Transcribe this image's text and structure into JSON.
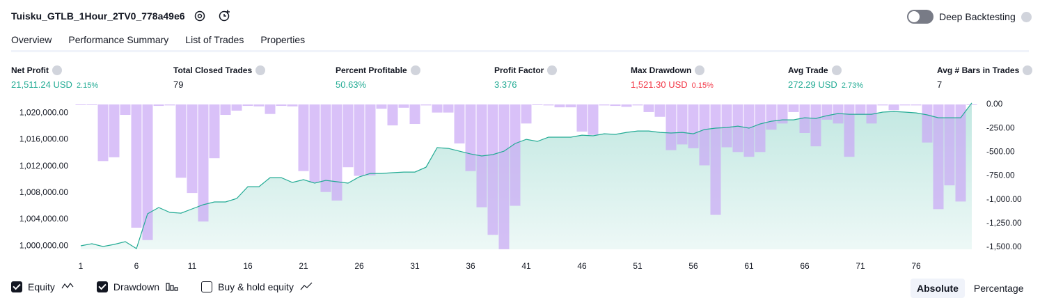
{
  "header": {
    "title": "Tuisku_GTLB_1Hour_2TV0_778a49e6",
    "toggle": {
      "label": "Deep Backtesting",
      "on": false
    }
  },
  "tabs": {
    "items": [
      "Overview",
      "Performance Summary",
      "List of Trades",
      "Properties"
    ],
    "active": 0
  },
  "metrics": [
    {
      "label": "Net Profit",
      "value": "21,511.24 USD",
      "pct": "2.15%",
      "color": "#22ab94"
    },
    {
      "label": "Total Closed Trades",
      "value": "79",
      "color": "#131722"
    },
    {
      "label": "Percent Profitable",
      "value": "50.63%",
      "color": "#22ab94"
    },
    {
      "label": "Profit Factor",
      "value": "3.376",
      "color": "#22ab94"
    },
    {
      "label": "Max Drawdown",
      "value": "1,521.30 USD",
      "pct": "0.15%",
      "color": "#f23645"
    },
    {
      "label": "Avg Trade",
      "value": "272.29 USD",
      "pct": "2.73%",
      "color": "#22ab94"
    },
    {
      "label": "Avg # Bars in Trades",
      "value": "7",
      "color": "#131722"
    }
  ],
  "chart_data": {
    "type": "line",
    "x": [
      1,
      2,
      3,
      4,
      5,
      6,
      7,
      8,
      9,
      10,
      11,
      12,
      13,
      14,
      15,
      16,
      17,
      18,
      19,
      20,
      21,
      22,
      23,
      24,
      25,
      26,
      27,
      28,
      29,
      30,
      31,
      32,
      33,
      34,
      35,
      36,
      37,
      38,
      39,
      40,
      41,
      42,
      43,
      44,
      45,
      46,
      47,
      48,
      49,
      50,
      51,
      52,
      53,
      54,
      55,
      56,
      57,
      58,
      59,
      60,
      61,
      62,
      63,
      64,
      65,
      66,
      67,
      68,
      69,
      70,
      71,
      72,
      73,
      74,
      75,
      76,
      77,
      78,
      79,
      80,
      81
    ],
    "xlim": [
      0.5,
      81.5
    ],
    "xticks": [
      1,
      6,
      11,
      16,
      21,
      26,
      31,
      36,
      41,
      46,
      51,
      56,
      61,
      66,
      71,
      76
    ],
    "ylim": [
      999500,
      1021600
    ],
    "yticks": [
      {
        "value": 1000000,
        "label": "1,000,000.00"
      },
      {
        "value": 1004000,
        "label": "1,004,000.00"
      },
      {
        "value": 1008000,
        "label": "1,008,000.00"
      },
      {
        "value": 1012000,
        "label": "1,012,000.00"
      },
      {
        "value": 1016000,
        "label": "1,016,000.00"
      },
      {
        "value": 1020000,
        "label": "1,020,000.00"
      }
    ],
    "y2lim": [
      -1522,
      0
    ],
    "y2ticks": [
      {
        "value": 0,
        "label": "0.00"
      },
      {
        "value": -250,
        "label": "-250.00"
      },
      {
        "value": -500,
        "label": "-500.00"
      },
      {
        "value": -750,
        "label": "-750.00"
      },
      {
        "value": -1000,
        "label": "-1,000.00"
      },
      {
        "value": -1250,
        "label": "-1,250.00"
      },
      {
        "value": -1500,
        "label": "-1,500.00"
      }
    ],
    "series": [
      {
        "name": "Equity",
        "color": "#22ab94",
        "checked": true,
        "values": [
          1000020,
          1000340,
          999920,
          1000230,
          1000650,
          999600,
          1004840,
          1005780,
          1005050,
          1004940,
          1005570,
          1006200,
          1006620,
          1006620,
          1007140,
          1008920,
          1008920,
          1010280,
          1010280,
          1009550,
          1009970,
          1009450,
          1009870,
          1009660,
          1009450,
          1010390,
          1010910,
          1010910,
          1011020,
          1011120,
          1011120,
          1011850,
          1014790,
          1014680,
          1014260,
          1013840,
          1013530,
          1013740,
          1014260,
          1015410,
          1016040,
          1015730,
          1016360,
          1016360,
          1016360,
          1016670,
          1016570,
          1016880,
          1016780,
          1017090,
          1017300,
          1017300,
          1017090,
          1016990,
          1017090,
          1016880,
          1017510,
          1017720,
          1017820,
          1018030,
          1017720,
          1018350,
          1018760,
          1018970,
          1018970,
          1019290,
          1019180,
          1019600,
          1019920,
          1019810,
          1019810,
          1019810,
          1020130,
          1020230,
          1020130,
          1020020,
          1019710,
          1019290,
          1019290,
          1019290,
          1021511
        ]
      },
      {
        "name": "Drawdown",
        "color": "#c9a6f5",
        "axis": "y2",
        "checked": true,
        "values": [
          -4,
          -4,
          -595,
          -555,
          -110,
          -1295,
          -1425,
          -15,
          -10,
          -770,
          -930,
          -1230,
          -565,
          -110,
          -65,
          -15,
          -20,
          -100,
          -15,
          -20,
          -700,
          -820,
          -920,
          -1010,
          -660,
          -750,
          -745,
          -45,
          -220,
          -35,
          -205,
          -10,
          -85,
          -85,
          -410,
          -700,
          -1080,
          -1370,
          -1521.3,
          -1065,
          -200,
          -5,
          -10,
          -30,
          -30,
          -285,
          -320,
          -10,
          -15,
          -25,
          -10,
          -80,
          -130,
          -480,
          -420,
          -460,
          -640,
          -1160,
          -450,
          -500,
          -550,
          -500,
          -265,
          -200,
          -80,
          -300,
          -440,
          -160,
          -200,
          -550,
          -110,
          -200,
          -10,
          -60,
          -10,
          -10,
          -400,
          -1100,
          -850,
          -1020,
          0
        ]
      },
      {
        "name": "Buy & hold equity",
        "color": "#787b86",
        "checked": false
      }
    ],
    "modes": {
      "items": [
        "Absolute",
        "Percentage"
      ],
      "selected": 0
    }
  }
}
